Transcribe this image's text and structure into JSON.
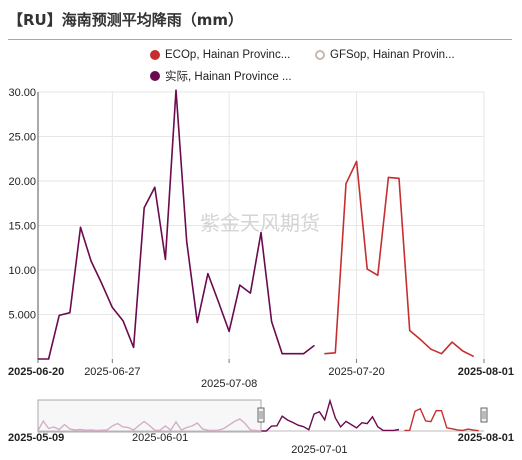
{
  "title": "【RU】海南预测平均降雨（mm）",
  "watermark": "紫金天风期货",
  "legend": [
    {
      "label": "ECOp, Hainan Provinc...",
      "color": "#c62f2f",
      "filled": true
    },
    {
      "label": "GFSop, Hainan Provin...",
      "color": "#c9b9b1",
      "filled": false
    },
    {
      "label": "实际, Hainan Province ...",
      "color": "#6b0a4e",
      "filled": true
    }
  ],
  "chart_data": {
    "type": "line",
    "ylim": [
      0,
      30
    ],
    "yticks": [
      "30.00",
      "25.00",
      "20.00",
      "15.00",
      "10.00",
      "5.000"
    ],
    "x_range": [
      "2025-06-20",
      "2025-08-01"
    ],
    "xticks_row1": [
      "2025-06-20",
      "2025-06-27",
      "2025-07-20",
      "2025-08-01"
    ],
    "xticks_row2": [
      "2025-07-08"
    ],
    "series": [
      {
        "name": "实际, Hainan Province ...",
        "color": "#6b0a4e",
        "points": [
          [
            "2025-06-20",
            0.0
          ],
          [
            "2025-06-21",
            0.0
          ],
          [
            "2025-06-22",
            4.9
          ],
          [
            "2025-06-23",
            5.2
          ],
          [
            "2025-06-24",
            14.8
          ],
          [
            "2025-06-25",
            11.0
          ],
          [
            "2025-06-26",
            8.5
          ],
          [
            "2025-06-27",
            5.8
          ],
          [
            "2025-06-28",
            4.3
          ],
          [
            "2025-06-29",
            1.3
          ],
          [
            "2025-06-30",
            17.0
          ],
          [
            "2025-07-01",
            19.3
          ],
          [
            "2025-07-02",
            11.2
          ],
          [
            "2025-07-03",
            30.2
          ],
          [
            "2025-07-04",
            13.2
          ],
          [
            "2025-07-05",
            4.1
          ],
          [
            "2025-07-06",
            9.6
          ],
          [
            "2025-07-07",
            6.4
          ],
          [
            "2025-07-08",
            3.1
          ],
          [
            "2025-07-09",
            8.3
          ],
          [
            "2025-07-10",
            7.4
          ],
          [
            "2025-07-11",
            14.2
          ],
          [
            "2025-07-12",
            4.2
          ],
          [
            "2025-07-13",
            0.6
          ],
          [
            "2025-07-14",
            0.6
          ],
          [
            "2025-07-15",
            0.6
          ],
          [
            "2025-07-16",
            1.5
          ]
        ]
      },
      {
        "name": "ECOp, Hainan Provinc...",
        "color": "#c62f2f",
        "points": [
          [
            "2025-07-17",
            0.6
          ],
          [
            "2025-07-18",
            0.7
          ],
          [
            "2025-07-19",
            19.7
          ],
          [
            "2025-07-20",
            22.2
          ],
          [
            "2025-07-21",
            10.1
          ],
          [
            "2025-07-22",
            9.4
          ],
          [
            "2025-07-23",
            20.4
          ],
          [
            "2025-07-24",
            20.3
          ],
          [
            "2025-07-25",
            3.2
          ],
          [
            "2025-07-26",
            2.2
          ],
          [
            "2025-07-27",
            1.1
          ],
          [
            "2025-07-28",
            0.6
          ],
          [
            "2025-07-29",
            1.9
          ],
          [
            "2025-07-30",
            0.9
          ],
          [
            "2025-07-31",
            0.3
          ]
        ]
      }
    ]
  },
  "navigator": {
    "x_range": [
      "2025-05-09",
      "2025-08-01"
    ],
    "ylim": [
      0,
      30
    ],
    "ticks_row1": [
      "2025-05-09",
      "2025-06-01",
      "2025-08-01"
    ],
    "ticks_row2": [
      "2025-07-01"
    ],
    "selected_range": [
      "2025-06-20",
      "2025-08-01"
    ],
    "unselected_color": "#d9a9c5",
    "series": [
      {
        "name": "实际, Hainan Province ...",
        "color": "#6b0a4e",
        "points": [
          [
            "2025-05-09",
            0.5
          ],
          [
            "2025-05-10",
            10.0
          ],
          [
            "2025-05-11",
            2.5
          ],
          [
            "2025-05-12",
            4.0
          ],
          [
            "2025-05-13",
            1.5
          ],
          [
            "2025-05-14",
            6.5
          ],
          [
            "2025-05-15",
            2.0
          ],
          [
            "2025-05-16",
            1.0
          ],
          [
            "2025-05-17",
            1.5
          ],
          [
            "2025-05-18",
            0.8
          ],
          [
            "2025-05-19",
            1.0
          ],
          [
            "2025-05-20",
            0.6
          ],
          [
            "2025-05-21",
            0.8
          ],
          [
            "2025-05-22",
            1.0
          ],
          [
            "2025-05-23",
            5.0
          ],
          [
            "2025-05-24",
            7.5
          ],
          [
            "2025-05-25",
            4.0
          ],
          [
            "2025-05-26",
            3.5
          ],
          [
            "2025-05-27",
            1.0
          ],
          [
            "2025-05-28",
            5.5
          ],
          [
            "2025-05-29",
            9.5
          ],
          [
            "2025-05-30",
            5.5
          ],
          [
            "2025-05-31",
            0.7
          ],
          [
            "2025-06-01",
            0.8
          ],
          [
            "2025-06-02",
            5.0
          ],
          [
            "2025-06-03",
            0.9
          ],
          [
            "2025-06-04",
            9.0
          ],
          [
            "2025-06-05",
            1.0
          ],
          [
            "2025-06-06",
            3.5
          ],
          [
            "2025-06-07",
            5.0
          ],
          [
            "2025-06-08",
            8.0
          ],
          [
            "2025-06-09",
            2.0
          ],
          [
            "2025-06-10",
            0.8
          ],
          [
            "2025-06-11",
            0.6
          ],
          [
            "2025-06-12",
            0.8
          ],
          [
            "2025-06-13",
            2.5
          ],
          [
            "2025-06-14",
            6.0
          ],
          [
            "2025-06-15",
            9.5
          ],
          [
            "2025-06-16",
            12.0
          ],
          [
            "2025-06-17",
            7.5
          ],
          [
            "2025-06-18",
            1.0
          ],
          [
            "2025-06-19",
            0.5
          ],
          [
            "2025-06-20",
            0.0
          ],
          [
            "2025-06-21",
            0.0
          ],
          [
            "2025-06-22",
            4.9
          ],
          [
            "2025-06-23",
            5.2
          ],
          [
            "2025-06-24",
            14.8
          ],
          [
            "2025-06-25",
            11.0
          ],
          [
            "2025-06-26",
            8.5
          ],
          [
            "2025-06-27",
            5.8
          ],
          [
            "2025-06-28",
            4.3
          ],
          [
            "2025-06-29",
            1.3
          ],
          [
            "2025-06-30",
            17.0
          ],
          [
            "2025-07-01",
            19.3
          ],
          [
            "2025-07-02",
            11.2
          ],
          [
            "2025-07-03",
            30.2
          ],
          [
            "2025-07-04",
            13.2
          ],
          [
            "2025-07-05",
            4.1
          ],
          [
            "2025-07-06",
            9.6
          ],
          [
            "2025-07-07",
            6.4
          ],
          [
            "2025-07-08",
            3.1
          ],
          [
            "2025-07-09",
            8.3
          ],
          [
            "2025-07-10",
            7.4
          ],
          [
            "2025-07-11",
            14.2
          ],
          [
            "2025-07-12",
            4.2
          ],
          [
            "2025-07-13",
            0.6
          ],
          [
            "2025-07-14",
            0.6
          ],
          [
            "2025-07-15",
            0.6
          ],
          [
            "2025-07-16",
            1.5
          ]
        ]
      },
      {
        "name": "ECOp, Hainan Provinc...",
        "color": "#c62f2f",
        "points": [
          [
            "2025-07-17",
            0.6
          ],
          [
            "2025-07-18",
            0.7
          ],
          [
            "2025-07-19",
            19.7
          ],
          [
            "2025-07-20",
            22.2
          ],
          [
            "2025-07-21",
            10.1
          ],
          [
            "2025-07-22",
            9.4
          ],
          [
            "2025-07-23",
            20.4
          ],
          [
            "2025-07-24",
            20.3
          ],
          [
            "2025-07-25",
            3.2
          ],
          [
            "2025-07-26",
            2.2
          ],
          [
            "2025-07-27",
            1.1
          ],
          [
            "2025-07-28",
            0.6
          ],
          [
            "2025-07-29",
            1.9
          ],
          [
            "2025-07-30",
            0.9
          ],
          [
            "2025-07-31",
            0.3
          ]
        ]
      }
    ]
  }
}
